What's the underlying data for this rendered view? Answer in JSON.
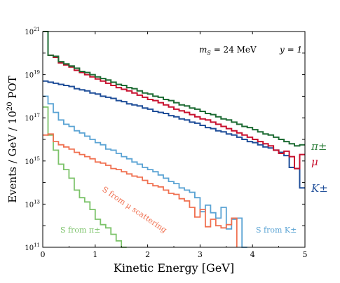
{
  "chart_data": {
    "type": "line",
    "title": "",
    "xlabel": "Kinetic Energy [GeV]",
    "ylabel": "Events / GeV / 10",
    "ylabel_exp": "20",
    "ylabel_unit": "POT",
    "xlim": [
      0,
      5
    ],
    "ylim_log10": [
      11,
      21
    ],
    "yscale": "log",
    "grid": false,
    "x_ticks": [
      "0",
      "1",
      "2",
      "3",
      "4",
      "5"
    ],
    "y_tick_base": "10",
    "y_tick_exps": [
      "11",
      "13",
      "15",
      "17",
      "19",
      "21"
    ],
    "annotations": {
      "mass": "m",
      "mass_sub": "S",
      "mass_rest": " = 24 MeV",
      "coupling": "y = 1"
    },
    "series": [
      {
        "name": "π±",
        "color": "#1d6b33",
        "labelColor": "#2f7f3c",
        "x": [
          0,
          0.1,
          0.2,
          0.3,
          0.4,
          0.5,
          0.6,
          0.7,
          0.8,
          0.9,
          1,
          1.1,
          1.2,
          1.3,
          1.4,
          1.5,
          1.6,
          1.7,
          1.8,
          1.9,
          2,
          2.1,
          2.2,
          2.3,
          2.4,
          2.5,
          2.6,
          2.7,
          2.8,
          2.9,
          3,
          3.1,
          3.2,
          3.3,
          3.4,
          3.5,
          3.6,
          3.7,
          3.8,
          3.9,
          4,
          4.1,
          4.2,
          4.3,
          4.4,
          4.5,
          4.6,
          4.7,
          4.8,
          4.9
        ],
        "y": [
          21,
          19.9,
          19.85,
          19.6,
          19.5,
          19.4,
          19.3,
          19.15,
          19.1,
          19,
          18.9,
          18.82,
          18.75,
          18.65,
          18.55,
          18.5,
          18.4,
          18.35,
          18.25,
          18.15,
          18.1,
          18,
          17.95,
          17.85,
          17.8,
          17.7,
          17.6,
          17.55,
          17.45,
          17.4,
          17.3,
          17.2,
          17.15,
          17.05,
          16.95,
          16.9,
          16.8,
          16.7,
          16.6,
          16.55,
          16.45,
          16.35,
          16.25,
          16.2,
          16.1,
          16,
          15.9,
          15.8,
          15.7,
          15.75
        ]
      },
      {
        "name": "μ",
        "color": "#c8102e",
        "labelColor": "#c8102e",
        "x": [
          0,
          0.1,
          0.2,
          0.3,
          0.4,
          0.5,
          0.6,
          0.7,
          0.8,
          0.9,
          1,
          1.1,
          1.2,
          1.3,
          1.4,
          1.5,
          1.6,
          1.7,
          1.8,
          1.9,
          2,
          2.1,
          2.2,
          2.3,
          2.4,
          2.5,
          2.6,
          2.7,
          2.8,
          2.9,
          3,
          3.1,
          3.2,
          3.3,
          3.4,
          3.5,
          3.6,
          3.7,
          3.8,
          3.9,
          4,
          4.1,
          4.2,
          4.3,
          4.4,
          4.5,
          4.6,
          4.7,
          4.8,
          4.9
        ],
        "y": [
          21,
          19.9,
          19.8,
          19.55,
          19.45,
          19.35,
          19.2,
          19.1,
          19,
          18.9,
          18.8,
          18.7,
          18.6,
          18.5,
          18.4,
          18.32,
          18.25,
          18.15,
          18.05,
          17.95,
          17.85,
          17.8,
          17.7,
          17.6,
          17.5,
          17.4,
          17.32,
          17.25,
          17.15,
          17.05,
          16.95,
          16.9,
          16.8,
          16.7,
          16.6,
          16.5,
          16.4,
          16.3,
          16.2,
          16.1,
          16,
          15.9,
          15.8,
          15.7,
          15.5,
          15.35,
          15.45,
          15.2,
          14.65,
          15.3
        ]
      },
      {
        "name": "K±",
        "color": "#1f4e99",
        "labelColor": "#1f4e99",
        "x": [
          0,
          0.1,
          0.2,
          0.3,
          0.4,
          0.5,
          0.6,
          0.7,
          0.8,
          0.9,
          1,
          1.1,
          1.2,
          1.3,
          1.4,
          1.5,
          1.6,
          1.7,
          1.8,
          1.9,
          2,
          2.1,
          2.2,
          2.3,
          2.4,
          2.5,
          2.6,
          2.7,
          2.8,
          2.9,
          3,
          3.1,
          3.2,
          3.3,
          3.4,
          3.5,
          3.6,
          3.7,
          3.8,
          3.9,
          4,
          4.1,
          4.2,
          4.3,
          4.4,
          4.5,
          4.6,
          4.7,
          4.8,
          4.9
        ],
        "y": [
          18.7,
          18.65,
          18.6,
          18.55,
          18.5,
          18.45,
          18.35,
          18.3,
          18.25,
          18.15,
          18.1,
          18,
          17.95,
          17.9,
          17.8,
          17.75,
          17.65,
          17.6,
          17.55,
          17.45,
          17.4,
          17.3,
          17.25,
          17.2,
          17.1,
          17.05,
          16.95,
          16.9,
          16.8,
          16.75,
          16.65,
          16.55,
          16.5,
          16.4,
          16.35,
          16.25,
          16.2,
          16.1,
          16,
          15.9,
          15.85,
          15.75,
          15.65,
          15.6,
          15.5,
          15.4,
          15.25,
          14.7,
          14.65,
          13.75
        ]
      },
      {
        "name": "S from μ scattering",
        "color": "#f07050",
        "labelColor": "#f07050",
        "x": [
          0,
          0.1,
          0.2,
          0.3,
          0.4,
          0.5,
          0.6,
          0.7,
          0.8,
          0.9,
          1,
          1.1,
          1.2,
          1.3,
          1.4,
          1.5,
          1.6,
          1.7,
          1.8,
          1.9,
          2,
          2.1,
          2.2,
          2.3,
          2.4,
          2.5,
          2.6,
          2.7,
          2.8,
          2.9,
          3,
          3.1,
          3.2,
          3.3,
          3.4,
          3.5,
          3.6
        ],
        "y": [
          16.2,
          16.25,
          15.9,
          15.75,
          15.65,
          15.55,
          15.4,
          15.3,
          15.2,
          15.1,
          14.95,
          14.9,
          14.8,
          14.65,
          14.6,
          14.5,
          14.4,
          14.3,
          14.25,
          14.1,
          13.95,
          13.85,
          13.8,
          13.65,
          13.5,
          13.45,
          13.25,
          13.15,
          12.85,
          12.4,
          12.75,
          11.95,
          12.3,
          12,
          11.9,
          12.05,
          12.35
        ]
      },
      {
        "name": "S from K±",
        "color": "#5aa3d4",
        "labelColor": "#5aa3d4",
        "x": [
          0,
          0.1,
          0.2,
          0.3,
          0.4,
          0.5,
          0.6,
          0.7,
          0.8,
          0.9,
          1,
          1.1,
          1.2,
          1.3,
          1.4,
          1.5,
          1.6,
          1.7,
          1.8,
          1.9,
          2,
          2.1,
          2.2,
          2.3,
          2.4,
          2.5,
          2.6,
          2.7,
          2.8,
          2.9,
          3,
          3.1,
          3.2,
          3.3,
          3.4,
          3.5,
          3.6,
          3.7,
          3.8
        ],
        "y": [
          18,
          17.65,
          17.25,
          16.9,
          16.7,
          16.6,
          16.4,
          16.3,
          16.15,
          16,
          15.85,
          15.75,
          15.55,
          15.5,
          15.35,
          15.2,
          15.1,
          14.95,
          14.85,
          14.7,
          14.6,
          14.5,
          14.35,
          14.2,
          14.05,
          13.95,
          13.75,
          13.65,
          13.55,
          13.3,
          12.65,
          12.95,
          12.6,
          12.35,
          12.85,
          11.85,
          12.3,
          12.35,
          11
        ]
      },
      {
        "name": "S from π±",
        "color": "#7cc36a",
        "labelColor": "#7cc36a",
        "x": [
          0,
          0.1,
          0.2,
          0.3,
          0.4,
          0.5,
          0.6,
          0.7,
          0.8,
          0.9,
          1,
          1.1,
          1.2,
          1.3,
          1.4,
          1.5
        ],
        "y": [
          17.5,
          16.2,
          15.5,
          14.85,
          14.6,
          14.2,
          13.65,
          13.3,
          13.1,
          12.75,
          12.3,
          12.05,
          11.9,
          11.6,
          11.3,
          11
        ]
      }
    ]
  }
}
